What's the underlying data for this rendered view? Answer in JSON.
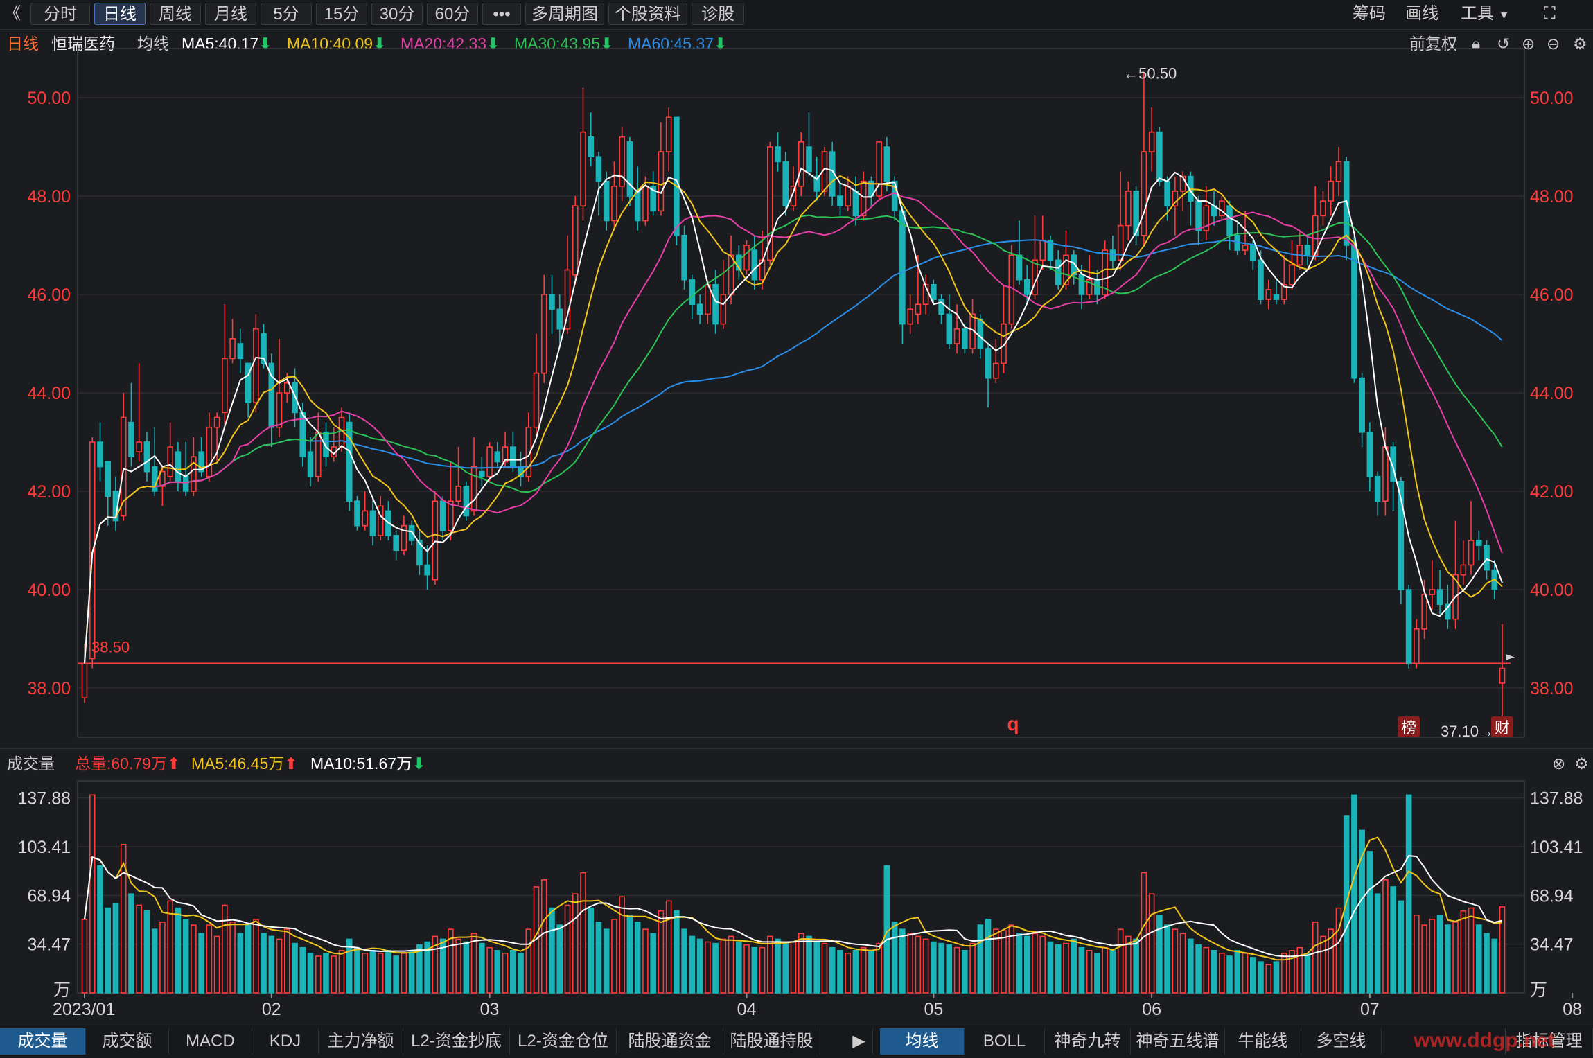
{
  "toolbar": {
    "back": "《",
    "tabs": [
      "分时",
      "日线",
      "周线",
      "月线",
      "5分",
      "15分",
      "30分",
      "60分",
      "•••",
      "多周期图",
      "个股资料",
      "诊股"
    ],
    "active_tab": "日线",
    "right": [
      "筹码",
      "画线",
      "工具"
    ]
  },
  "header": {
    "period": "日线",
    "stock": "恒瑞医药",
    "ma_label": "均线",
    "ma5": "MA5:40.17",
    "ma10": "MA10:40.09",
    "ma20": "MA20:42.33",
    "ma30": "MA30:43.95",
    "ma60": "MA60:45.37",
    "adjust": "前复权"
  },
  "colors": {
    "up": "#ff3b3b",
    "down": "#1ab3b8",
    "ma5": "#ffffff",
    "ma10": "#f0c419",
    "ma20": "#e63fa8",
    "ma30": "#2bc356",
    "ma60": "#2a8ee8",
    "bg": "#1b1c20"
  },
  "price_axis": {
    "ticks": [
      "50.00",
      "48.00",
      "46.00",
      "44.00",
      "42.00",
      "40.00",
      "38.00"
    ]
  },
  "volume_axis": {
    "ticks": [
      "137.88",
      "103.41",
      "68.94",
      "34.47",
      "万"
    ]
  },
  "date_axis": [
    "2023/01",
    "02",
    "03",
    "04",
    "05",
    "06",
    "07",
    "08"
  ],
  "annotations": {
    "high": "←50.50",
    "low": "37.10→",
    "ref_line": "38.50",
    "marker_q": "q",
    "badge_bang": "榜",
    "badge_cai": "财"
  },
  "volume_header": {
    "label": "成交量",
    "total": "总量:60.79万",
    "ma5": "MA5:46.45万",
    "ma10": "MA10:51.67万"
  },
  "bottom_tabs_left": [
    "成交量",
    "成交额",
    "MACD",
    "KDJ",
    "主力净额",
    "L2-资金抄底",
    "L2-资金仓位",
    "陆股通资金",
    "陆股通持股"
  ],
  "bottom_tabs_right": [
    "均线",
    "BOLL",
    "神奇九转",
    "神奇五线谱",
    "牛能线",
    "多空线"
  ],
  "bottom_right": "指标管理",
  "watermark": "www.ddgp.net",
  "chart_data": {
    "type": "candlestick",
    "title": "恒瑞医药 日线",
    "ylim": [
      37,
      51
    ],
    "volume_ylim": [
      0,
      150
    ],
    "reference_price": 38.5,
    "candles": [
      [
        37.8,
        38.5,
        38.9,
        37.7,
        52
      ],
      [
        38.6,
        43.0,
        43.1,
        38.4,
        140
      ],
      [
        43.0,
        42.5,
        43.4,
        42.2,
        90
      ],
      [
        42.6,
        41.9,
        42.6,
        41.3,
        60
      ],
      [
        42.0,
        41.4,
        42.3,
        41.2,
        63
      ],
      [
        41.5,
        43.5,
        44.0,
        41.4,
        105
      ],
      [
        43.4,
        42.7,
        44.2,
        42.5,
        70
      ],
      [
        42.8,
        43.0,
        44.6,
        42.6,
        62
      ],
      [
        43.0,
        42.4,
        43.2,
        42.2,
        58
      ],
      [
        42.5,
        42.0,
        43.3,
        41.9,
        45
      ],
      [
        42.1,
        42.4,
        42.5,
        41.7,
        50
      ],
      [
        42.3,
        42.9,
        43.4,
        42.2,
        65
      ],
      [
        42.8,
        42.2,
        43.0,
        42.0,
        60
      ],
      [
        42.3,
        42.0,
        43.0,
        41.9,
        52
      ],
      [
        42.0,
        42.7,
        43.1,
        41.9,
        48
      ],
      [
        42.8,
        42.4,
        43.1,
        42.3,
        42
      ],
      [
        42.3,
        43.3,
        43.6,
        42.2,
        48
      ],
      [
        43.3,
        43.5,
        43.6,
        42.6,
        40
      ],
      [
        43.6,
        44.7,
        45.8,
        43.3,
        62
      ],
      [
        44.7,
        45.1,
        45.5,
        44.6,
        50
      ],
      [
        45.0,
        44.7,
        45.3,
        44.4,
        42
      ],
      [
        44.6,
        43.8,
        44.5,
        43.5,
        48
      ],
      [
        43.8,
        45.3,
        45.6,
        43.6,
        52
      ],
      [
        45.2,
        44.6,
        45.4,
        44.5,
        42
      ],
      [
        44.6,
        43.3,
        44.8,
        42.9,
        40
      ],
      [
        43.3,
        44.0,
        45.1,
        43.1,
        38
      ],
      [
        44.0,
        44.2,
        44.4,
        43.8,
        45
      ],
      [
        44.2,
        43.6,
        44.5,
        43.3,
        35
      ],
      [
        43.6,
        42.7,
        43.8,
        42.5,
        32
      ],
      [
        42.8,
        42.3,
        43.1,
        42.1,
        28
      ],
      [
        42.3,
        43.2,
        43.6,
        42.2,
        26
      ],
      [
        43.2,
        42.7,
        43.4,
        42.5,
        28
      ],
      [
        42.7,
        42.9,
        43.3,
        42.6,
        26
      ],
      [
        42.9,
        43.5,
        43.7,
        42.8,
        30
      ],
      [
        43.4,
        41.8,
        43.6,
        41.6,
        38
      ],
      [
        41.8,
        41.3,
        41.9,
        41.2,
        32
      ],
      [
        41.3,
        41.6,
        42.0,
        41.2,
        28
      ],
      [
        41.6,
        41.1,
        41.9,
        40.9,
        30
      ],
      [
        41.1,
        41.7,
        41.9,
        41.0,
        28
      ],
      [
        41.6,
        41.1,
        41.8,
        41.0,
        30
      ],
      [
        41.1,
        40.8,
        41.2,
        40.6,
        26
      ],
      [
        40.8,
        41.3,
        41.5,
        40.7,
        28
      ],
      [
        41.3,
        41.0,
        41.4,
        40.9,
        30
      ],
      [
        41.0,
        40.5,
        41.2,
        40.3,
        34
      ],
      [
        40.5,
        40.3,
        40.9,
        40.0,
        36
      ],
      [
        40.2,
        41.8,
        42.0,
        40.1,
        40
      ],
      [
        41.8,
        41.2,
        41.9,
        41.0,
        38
      ],
      [
        41.2,
        41.8,
        42.6,
        41.0,
        45
      ],
      [
        41.8,
        42.1,
        42.9,
        41.7,
        38
      ],
      [
        42.1,
        41.5,
        42.2,
        41.4,
        36
      ],
      [
        41.6,
        42.5,
        43.1,
        41.5,
        42
      ],
      [
        42.4,
        42.3,
        42.7,
        42.1,
        35
      ],
      [
        42.3,
        42.9,
        43.0,
        42.2,
        32
      ],
      [
        42.8,
        42.6,
        43.0,
        42.5,
        30
      ],
      [
        42.6,
        42.9,
        43.2,
        42.5,
        28
      ],
      [
        42.9,
        42.5,
        43.2,
        42.4,
        30
      ],
      [
        42.5,
        42.3,
        42.8,
        42.1,
        28
      ],
      [
        42.3,
        43.3,
        43.6,
        42.2,
        45
      ],
      [
        43.3,
        44.4,
        45.2,
        43.1,
        75
      ],
      [
        44.4,
        46.0,
        46.4,
        44.2,
        80
      ],
      [
        46.0,
        45.7,
        46.4,
        45.2,
        60
      ],
      [
        45.7,
        45.3,
        46.0,
        45.0,
        48
      ],
      [
        45.3,
        46.5,
        47.2,
        45.2,
        62
      ],
      [
        46.4,
        47.8,
        48.0,
        46.2,
        70
      ],
      [
        47.8,
        49.3,
        50.2,
        47.5,
        85
      ],
      [
        49.2,
        48.8,
        49.7,
        48.6,
        60
      ],
      [
        48.8,
        48.3,
        48.9,
        47.6,
        50
      ],
      [
        48.3,
        47.5,
        48.5,
        47.3,
        45
      ],
      [
        47.5,
        48.2,
        48.7,
        47.3,
        52
      ],
      [
        48.2,
        49.2,
        49.4,
        47.9,
        68
      ],
      [
        49.1,
        48.0,
        49.2,
        47.8,
        55
      ],
      [
        48.1,
        47.5,
        48.6,
        47.3,
        50
      ],
      [
        47.5,
        48.2,
        48.4,
        47.4,
        45
      ],
      [
        48.2,
        47.7,
        48.5,
        47.6,
        42
      ],
      [
        47.7,
        48.9,
        49.5,
        47.6,
        58
      ],
      [
        48.9,
        49.6,
        49.8,
        48.5,
        65
      ],
      [
        49.6,
        47.2,
        49.6,
        47.0,
        58
      ],
      [
        47.2,
        46.3,
        47.4,
        46.1,
        45
      ],
      [
        46.3,
        45.8,
        46.4,
        45.5,
        40
      ],
      [
        45.8,
        45.6,
        46.0,
        45.4,
        38
      ],
      [
        45.6,
        46.2,
        46.3,
        45.4,
        36
      ],
      [
        46.2,
        45.4,
        46.5,
        45.2,
        35
      ],
      [
        45.4,
        46.0,
        46.7,
        45.3,
        38
      ],
      [
        46.0,
        46.8,
        47.2,
        45.8,
        40
      ],
      [
        46.8,
        46.5,
        47.0,
        46.3,
        36
      ],
      [
        46.5,
        47.0,
        47.1,
        46.4,
        34
      ],
      [
        46.9,
        46.3,
        47.2,
        46.1,
        32
      ],
      [
        46.3,
        46.7,
        47.3,
        46.1,
        32
      ],
      [
        46.7,
        49.0,
        49.1,
        46.6,
        40
      ],
      [
        49.0,
        48.7,
        49.3,
        48.5,
        38
      ],
      [
        48.7,
        47.8,
        48.9,
        47.6,
        35
      ],
      [
        47.8,
        48.2,
        48.6,
        47.7,
        36
      ],
      [
        48.2,
        49.1,
        49.3,
        48.0,
        42
      ],
      [
        49.0,
        48.5,
        49.7,
        48.4,
        40
      ],
      [
        48.4,
        48.1,
        48.8,
        47.9,
        36
      ],
      [
        48.1,
        48.9,
        49.0,
        48.0,
        35
      ],
      [
        48.9,
        48.0,
        49.1,
        47.8,
        32
      ],
      [
        48.0,
        47.8,
        48.3,
        47.6,
        30
      ],
      [
        47.8,
        48.2,
        48.4,
        47.7,
        28
      ],
      [
        48.1,
        47.6,
        48.4,
        47.4,
        30
      ],
      [
        47.6,
        48.3,
        48.5,
        47.5,
        32
      ],
      [
        48.3,
        48.0,
        48.4,
        47.8,
        30
      ],
      [
        48.0,
        49.1,
        49.1,
        47.9,
        35
      ],
      [
        49.0,
        48.3,
        49.2,
        48.1,
        90
      ],
      [
        48.3,
        47.7,
        48.4,
        47.5,
        50
      ],
      [
        47.7,
        45.4,
        47.8,
        45.0,
        45
      ],
      [
        45.4,
        45.7,
        46.0,
        45.2,
        42
      ],
      [
        45.6,
        45.8,
        46.8,
        45.4,
        40
      ],
      [
        45.8,
        46.2,
        46.4,
        45.6,
        38
      ],
      [
        46.2,
        45.9,
        46.3,
        45.8,
        36
      ],
      [
        45.9,
        45.6,
        46.0,
        45.4,
        35
      ],
      [
        45.6,
        45.0,
        46.0,
        44.9,
        34
      ],
      [
        45.0,
        45.3,
        45.8,
        44.8,
        32
      ],
      [
        45.3,
        44.9,
        45.4,
        44.8,
        30
      ],
      [
        44.9,
        45.6,
        45.9,
        44.8,
        35
      ],
      [
        45.5,
        44.9,
        45.6,
        44.7,
        48
      ],
      [
        44.9,
        44.3,
        45.0,
        43.7,
        52
      ],
      [
        44.3,
        44.6,
        45.1,
        44.2,
        45
      ],
      [
        44.6,
        45.4,
        46.2,
        44.4,
        44
      ],
      [
        45.4,
        46.8,
        47.0,
        45.3,
        48
      ],
      [
        46.8,
        46.3,
        47.5,
        46.2,
        42
      ],
      [
        46.3,
        46.0,
        46.6,
        45.8,
        40
      ],
      [
        46.0,
        46.7,
        47.6,
        45.9,
        42
      ],
      [
        46.7,
        47.1,
        47.6,
        46.5,
        40
      ],
      [
        47.1,
        46.7,
        47.2,
        46.5,
        36
      ],
      [
        46.7,
        46.2,
        46.9,
        46.1,
        34
      ],
      [
        46.2,
        46.8,
        47.3,
        46.1,
        35
      ],
      [
        46.8,
        46.4,
        46.9,
        46.2,
        38
      ],
      [
        46.4,
        46.0,
        46.6,
        45.7,
        32
      ],
      [
        46.0,
        46.3,
        46.8,
        45.9,
        30
      ],
      [
        46.3,
        46.0,
        46.5,
        45.8,
        28
      ],
      [
        46.0,
        46.9,
        47.1,
        45.9,
        32
      ],
      [
        46.9,
        46.7,
        47.2,
        46.5,
        30
      ],
      [
        46.7,
        47.4,
        48.5,
        46.5,
        45
      ],
      [
        47.4,
        48.1,
        48.3,
        47.1,
        40
      ],
      [
        48.1,
        47.2,
        48.2,
        47.0,
        38
      ],
      [
        47.2,
        48.9,
        50.5,
        47.0,
        85
      ],
      [
        48.9,
        49.3,
        49.8,
        48.5,
        70
      ],
      [
        49.3,
        48.3,
        49.4,
        48.2,
        55
      ],
      [
        48.3,
        47.8,
        48.4,
        47.5,
        48
      ],
      [
        47.8,
        48.1,
        48.4,
        47.2,
        45
      ],
      [
        48.1,
        48.4,
        48.5,
        47.7,
        42
      ],
      [
        48.4,
        47.9,
        48.5,
        47.4,
        38
      ],
      [
        47.9,
        47.3,
        48.0,
        47.0,
        34
      ],
      [
        47.3,
        47.8,
        48.2,
        47.1,
        32
      ],
      [
        47.8,
        47.6,
        48.1,
        47.4,
        30
      ],
      [
        47.6,
        47.9,
        48.0,
        47.5,
        28
      ],
      [
        47.8,
        47.2,
        47.9,
        46.9,
        26
      ],
      [
        47.2,
        46.9,
        47.5,
        46.8,
        30
      ],
      [
        46.9,
        47.0,
        47.7,
        46.8,
        28
      ],
      [
        47.0,
        46.7,
        47.1,
        46.5,
        25
      ],
      [
        46.7,
        45.9,
        46.9,
        45.8,
        22
      ],
      [
        45.9,
        46.1,
        46.3,
        45.7,
        20
      ],
      [
        46.0,
        45.9,
        46.3,
        45.8,
        22
      ],
      [
        45.9,
        46.2,
        46.8,
        45.8,
        28
      ],
      [
        46.2,
        46.6,
        47.1,
        46.1,
        30
      ],
      [
        46.6,
        47.0,
        47.3,
        46.5,
        32
      ],
      [
        47.0,
        46.8,
        47.2,
        46.6,
        28
      ],
      [
        46.8,
        47.6,
        48.2,
        46.7,
        50
      ],
      [
        47.6,
        47.9,
        48.1,
        47.4,
        40
      ],
      [
        47.9,
        48.3,
        48.6,
        47.6,
        45
      ],
      [
        48.3,
        48.7,
        49.0,
        48.0,
        60
      ],
      [
        48.7,
        47.0,
        48.8,
        46.7,
        125
      ],
      [
        47.0,
        44.3,
        47.2,
        44.2,
        140
      ],
      [
        44.3,
        43.2,
        44.4,
        42.9,
        115
      ],
      [
        43.2,
        42.3,
        43.4,
        42.0,
        100
      ],
      [
        42.3,
        41.8,
        42.4,
        41.5,
        70
      ],
      [
        41.8,
        42.9,
        43.3,
        41.5,
        80
      ],
      [
        42.9,
        42.2,
        43.0,
        41.6,
        75
      ],
      [
        42.2,
        40.0,
        42.3,
        39.7,
        65
      ],
      [
        40.0,
        38.5,
        40.1,
        38.4,
        140
      ],
      [
        38.5,
        39.2,
        39.4,
        38.4,
        55
      ],
      [
        39.2,
        39.9,
        40.2,
        39.0,
        48
      ],
      [
        39.9,
        40.0,
        40.6,
        39.6,
        52
      ],
      [
        40.0,
        39.7,
        40.4,
        39.5,
        55
      ],
      [
        39.7,
        39.4,
        40.1,
        39.2,
        48
      ],
      [
        39.4,
        40.3,
        41.4,
        39.2,
        50
      ],
      [
        40.3,
        40.5,
        41.0,
        40.1,
        58
      ],
      [
        40.5,
        41.0,
        41.8,
        40.3,
        60
      ],
      [
        41.0,
        40.9,
        41.2,
        40.6,
        48
      ],
      [
        40.9,
        40.4,
        41.0,
        40.2,
        42
      ],
      [
        40.4,
        40.0,
        40.6,
        39.8,
        38
      ],
      [
        38.1,
        38.4,
        39.3,
        37.1,
        60.79
      ]
    ],
    "ma_series": {
      "ma5": {
        "last": 40.17
      },
      "ma10": {
        "last": 40.09
      },
      "ma20": {
        "last": 42.33
      },
      "ma30": {
        "last": 43.95
      },
      "ma60": {
        "last": 45.37
      }
    }
  }
}
